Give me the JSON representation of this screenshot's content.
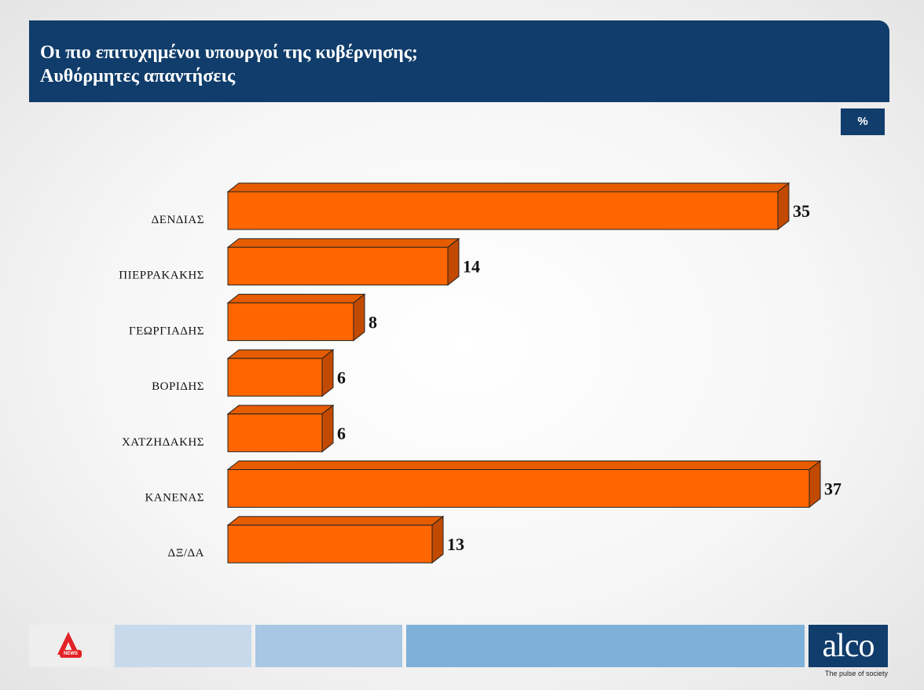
{
  "title": {
    "line1": "Οι πιο επιτυχημένοι υπουργοί της κυβέρνησης;",
    "line2": "Αυθόρμητες απαντήσεις"
  },
  "unit_label": "%",
  "chart_data": {
    "type": "bar",
    "orientation": "horizontal",
    "style": "3d",
    "categories": [
      "ΔΕΝΔΙΑΣ",
      "ΠΙΕΡΡΑΚΑΚΗΣ",
      "ΓΕΩΡΓΙΑΔΗΣ",
      "ΒΟΡΙΔΗΣ",
      "ΧΑΤΖΗΔΑΚΗΣ",
      "ΚΑΝΕΝΑΣ",
      "ΔΞ/ΔΑ"
    ],
    "values": [
      35,
      14,
      8,
      6,
      6,
      37,
      13
    ],
    "value_labels": [
      "35",
      "14",
      "8",
      "6",
      "6",
      "37",
      "13"
    ],
    "xlim": [
      0,
      40
    ],
    "grid": false,
    "legend": "none",
    "bar_color": "#ff6600",
    "bar_side_color": "#c24a00",
    "bar_top_color": "#e65c00"
  },
  "footer": {
    "brand": "alco",
    "tagline": "The pulse of society",
    "news_logo_text": "NEWS",
    "colors": [
      "#c7d9ea",
      "#a7c7e3",
      "#7fb0d9"
    ]
  }
}
